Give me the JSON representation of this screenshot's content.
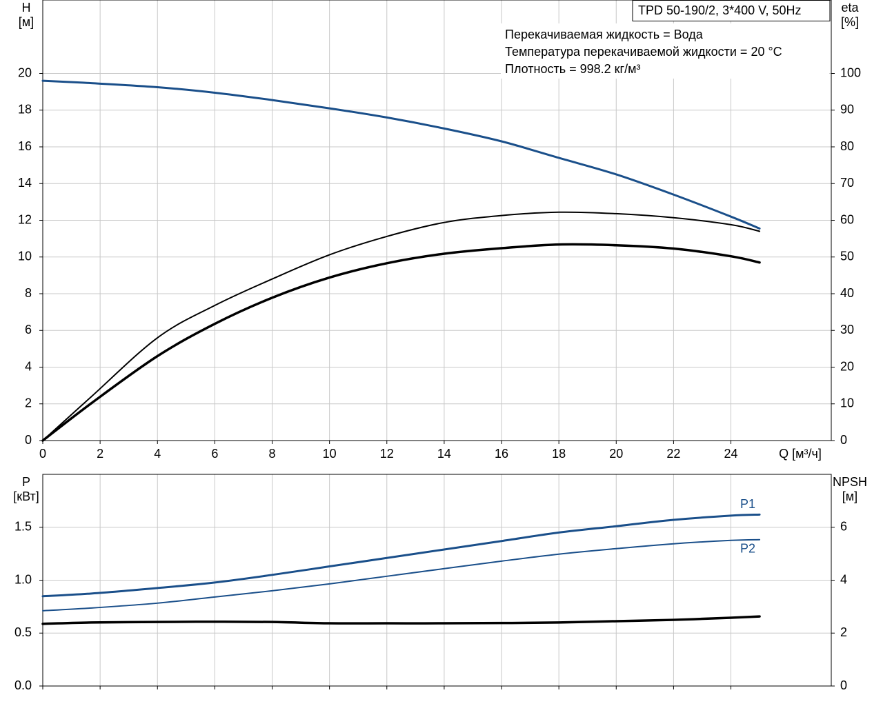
{
  "chart_data": [
    {
      "type": "line",
      "title": "TPD 50-190/2, 3*400 V, 50Hz",
      "annotations": [
        "Перекачиваемая жидкость = Вода",
        "Температура перекачиваемой жидкости = 20 °C",
        "Плотность = 998.2 кг/м³"
      ],
      "xlabel": "Q [м³/ч]",
      "ylabel": "H",
      "yunit": "[м]",
      "y2label": "eta",
      "y2unit": "[%]",
      "x": [
        0,
        1.7,
        4,
        6,
        8,
        10,
        12,
        14,
        16,
        18,
        20,
        22,
        24,
        25
      ],
      "xlim": [
        0,
        27.5
      ],
      "xticks": [
        0,
        2,
        4,
        6,
        8,
        10,
        12,
        14,
        16,
        18,
        20,
        22,
        24
      ],
      "ylim": [
        0,
        24
      ],
      "yticks": [
        0,
        2,
        4,
        6,
        8,
        10,
        12,
        14,
        16,
        18,
        20
      ],
      "y2lim": [
        0,
        120
      ],
      "y2ticks": [
        0,
        10,
        20,
        30,
        40,
        50,
        60,
        70,
        80,
        90,
        100
      ],
      "grid": true,
      "series": [
        {
          "color": "#1a4f8a",
          "linewidth": 3,
          "values": [
            19.6,
            19.47,
            19.25,
            18.95,
            18.55,
            18.1,
            17.6,
            17.0,
            16.3,
            15.4,
            14.5,
            13.4,
            12.2,
            11.55
          ]
        },
        {
          "color": "#000000",
          "linewidth": 2,
          "axis": "y2",
          "values": [
            0,
            12.0,
            28,
            36.8,
            44,
            50.6,
            55.6,
            59.4,
            61.3,
            62.2,
            61.8,
            60.7,
            58.8,
            57
          ]
        },
        {
          "color": "#000000",
          "linewidth": 3.5,
          "axis": "y2",
          "values": [
            0,
            10.2,
            23,
            31.8,
            38.9,
            44.4,
            48.3,
            50.9,
            52.4,
            53.4,
            53.2,
            52.3,
            50.2,
            48.5
          ]
        }
      ]
    },
    {
      "type": "line",
      "ylabel": "P",
      "yunit": "[кВт]",
      "y2label": "NPSH",
      "y2unit": "[м]",
      "x": [
        0,
        1.7,
        4,
        6,
        8,
        10,
        12,
        14,
        16,
        18,
        20,
        22,
        24,
        25
      ],
      "xlim": [
        0,
        27.5
      ],
      "xticks": [
        0,
        2,
        4,
        6,
        8,
        10,
        12,
        14,
        16,
        18,
        20,
        22,
        24
      ],
      "ylim": [
        0,
        2
      ],
      "yticks": [
        {
          "value": 0,
          "label": "0.0"
        },
        {
          "value": 0.5,
          "label": "0.5"
        },
        {
          "value": 1,
          "label": "1.0"
        },
        {
          "value": 1.5,
          "label": "1.5"
        }
      ],
      "y2lim": [
        0,
        8
      ],
      "y2ticks": [
        0,
        2,
        4,
        6
      ],
      "grid": true,
      "series": [
        {
          "name": "P1",
          "color": "#1a4f8a",
          "linewidth": 3,
          "values": [
            0.848,
            0.874,
            0.926,
            0.978,
            1.05,
            1.13,
            1.21,
            1.29,
            1.37,
            1.45,
            1.51,
            1.57,
            1.61,
            1.62
          ]
        },
        {
          "name": "P2",
          "color": "#1a4f8a",
          "linewidth": 2,
          "values": [
            0.711,
            0.737,
            0.783,
            0.841,
            0.9,
            0.965,
            1.037,
            1.109,
            1.18,
            1.246,
            1.298,
            1.344,
            1.376,
            1.383
          ]
        },
        {
          "color": "#000000",
          "linewidth": 3.5,
          "axis": "y2",
          "values": [
            2.35,
            2.4,
            2.42,
            2.43,
            2.42,
            2.37,
            2.37,
            2.37,
            2.38,
            2.4,
            2.45,
            2.5,
            2.58,
            2.63
          ]
        }
      ]
    }
  ]
}
